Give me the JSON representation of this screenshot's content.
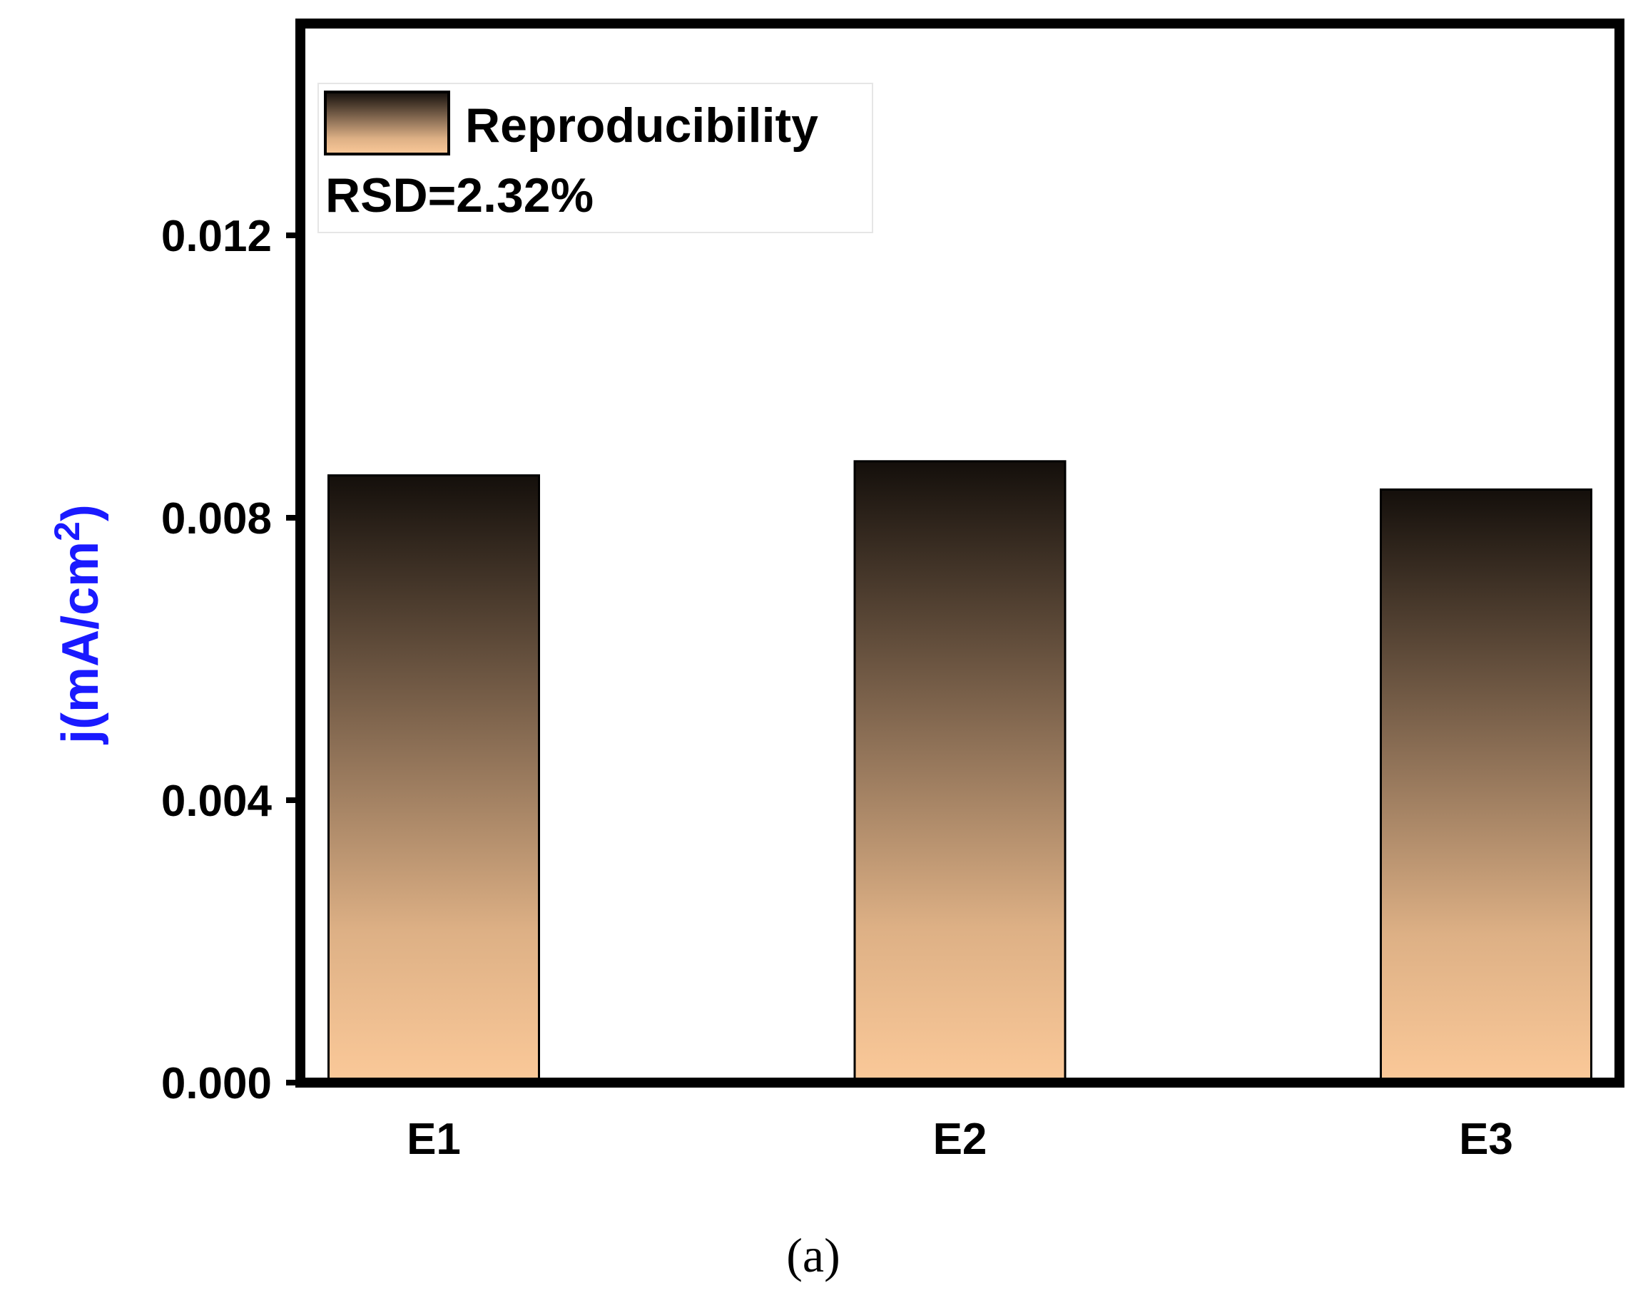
{
  "chart_data": {
    "type": "bar",
    "categories": [
      "E1",
      "E2",
      "E3"
    ],
    "series": [
      {
        "name": "Reproducibility",
        "values": [
          0.0086,
          0.0088,
          0.0084
        ]
      }
    ],
    "ylabel": {
      "prefix": "j(mA/cm",
      "superscript": "2",
      "suffix": ")"
    },
    "ylim": [
      0,
      0.015
    ],
    "yticks": [
      "0.000",
      "0.004",
      "0.008",
      "0.012"
    ],
    "ytick_values": [
      0,
      0.004,
      0.008,
      0.012
    ],
    "legend": {
      "entry": "Reproducibility",
      "annotation": "RSD=2.32%",
      "placement": "top-left"
    },
    "caption": "(a)",
    "grid": false,
    "colors": {
      "bar_top": "#140f0b",
      "bar_bottom": "#fbc999",
      "ylabel": "#1a1aff",
      "axis": "#000000"
    }
  }
}
